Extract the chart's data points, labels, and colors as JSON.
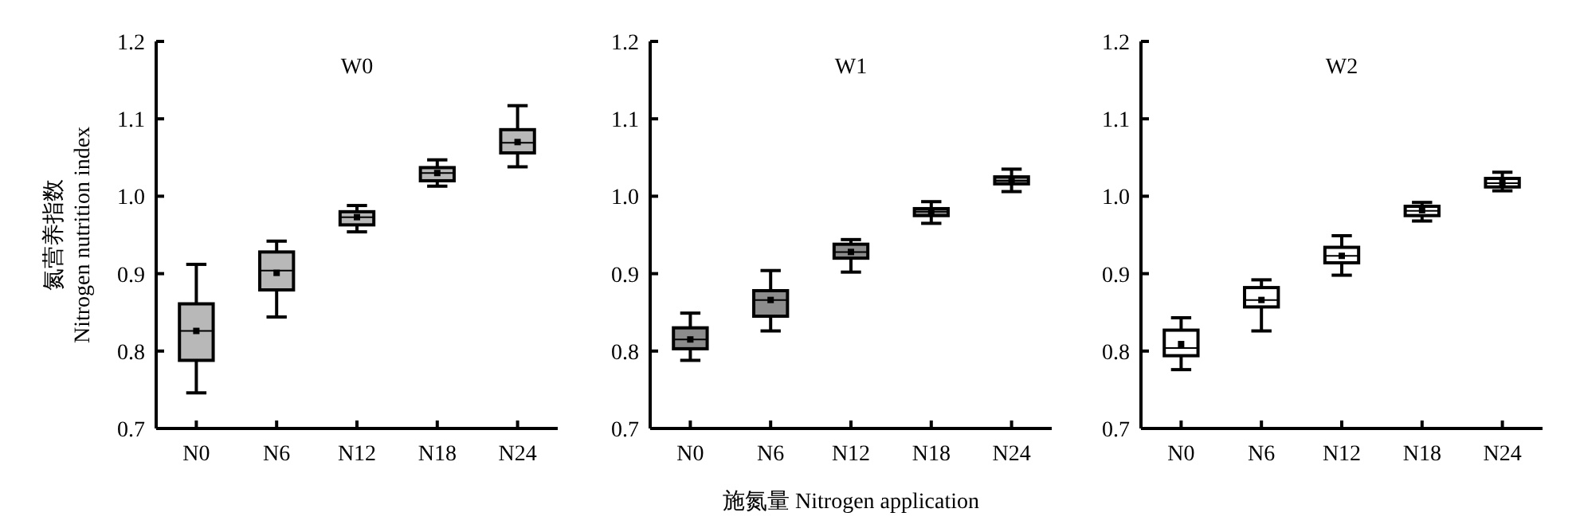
{
  "chart_data": [
    {
      "type": "box",
      "title": "W0",
      "ylabel": "氮营养指数\nNitrogen nutrition index",
      "categories": [
        "N0",
        "N6",
        "N12",
        "N18",
        "N24"
      ],
      "ylim": [
        0.7,
        1.2
      ],
      "yticks": [
        {
          "value": 0.7,
          "label": "0.7"
        },
        {
          "value": 0.8,
          "label": "0.8"
        },
        {
          "value": 0.9,
          "label": "0.9"
        },
        {
          "value": 1.0,
          "label": "1.0"
        },
        {
          "value": 1.1,
          "label": "1.1"
        },
        {
          "value": 1.2,
          "label": "1.2"
        }
      ],
      "series": [
        {
          "color": "#b8b8b8",
          "boxes": [
            {
              "low": 0.746,
              "q1": 0.788,
              "median": 0.826,
              "q3": 0.861,
              "high": 0.912,
              "mean": 0.826
            },
            {
              "low": 0.844,
              "q1": 0.879,
              "median": 0.904,
              "q3": 0.928,
              "high": 0.942,
              "mean": 0.901
            },
            {
              "low": 0.954,
              "q1": 0.963,
              "median": 0.973,
              "q3": 0.98,
              "high": 0.988,
              "mean": 0.973
            },
            {
              "low": 1.013,
              "q1": 1.02,
              "median": 1.03,
              "q3": 1.037,
              "high": 1.047,
              "mean": 1.03
            },
            {
              "low": 1.038,
              "q1": 1.056,
              "median": 1.069,
              "q3": 1.086,
              "high": 1.117,
              "mean": 1.07
            }
          ]
        }
      ]
    },
    {
      "type": "box",
      "title": "W1",
      "xlabel": "施氮量 Nitrogen application",
      "categories": [
        "N0",
        "N6",
        "N12",
        "N18",
        "N24"
      ],
      "ylim": [
        0.7,
        1.2
      ],
      "yticks": [
        {
          "value": 0.7,
          "label": "0.7"
        },
        {
          "value": 0.8,
          "label": "0.8"
        },
        {
          "value": 0.9,
          "label": "0.9"
        },
        {
          "value": 1.0,
          "label": "1.0"
        },
        {
          "value": 1.1,
          "label": "1.1"
        },
        {
          "value": 1.2,
          "label": "1.2"
        }
      ],
      "series": [
        {
          "color": "#8c8c8c",
          "boxes": [
            {
              "low": 0.788,
              "q1": 0.803,
              "median": 0.815,
              "q3": 0.83,
              "high": 0.849,
              "mean": 0.815
            },
            {
              "low": 0.826,
              "q1": 0.845,
              "median": 0.866,
              "q3": 0.878,
              "high": 0.904,
              "mean": 0.866
            },
            {
              "low": 0.902,
              "q1": 0.92,
              "median": 0.928,
              "q3": 0.938,
              "high": 0.944,
              "mean": 0.928
            },
            {
              "low": 0.965,
              "q1": 0.975,
              "median": 0.98,
              "q3": 0.984,
              "high": 0.993,
              "mean": 0.98
            },
            {
              "low": 1.006,
              "q1": 1.016,
              "median": 1.02,
              "q3": 1.025,
              "high": 1.035,
              "mean": 1.02
            }
          ]
        }
      ]
    },
    {
      "type": "box",
      "title": "W2",
      "categories": [
        "N0",
        "N6",
        "N12",
        "N18",
        "N24"
      ],
      "ylim": [
        0.7,
        1.2
      ],
      "yticks": [
        {
          "value": 0.7,
          "label": "0.7"
        },
        {
          "value": 0.8,
          "label": "0.8"
        },
        {
          "value": 0.9,
          "label": "0.9"
        },
        {
          "value": 1.0,
          "label": "1.0"
        },
        {
          "value": 1.1,
          "label": "1.1"
        },
        {
          "value": 1.2,
          "label": "1.2"
        }
      ],
      "series": [
        {
          "color": "#ffffff",
          "boxes": [
            {
              "low": 0.776,
              "q1": 0.794,
              "median": 0.804,
              "q3": 0.827,
              "high": 0.843,
              "mean": 0.809
            },
            {
              "low": 0.826,
              "q1": 0.857,
              "median": 0.866,
              "q3": 0.882,
              "high": 0.892,
              "mean": 0.866
            },
            {
              "low": 0.898,
              "q1": 0.914,
              "median": 0.923,
              "q3": 0.934,
              "high": 0.949,
              "mean": 0.923
            },
            {
              "low": 0.968,
              "q1": 0.975,
              "median": 0.981,
              "q3": 0.987,
              "high": 0.992,
              "mean": 0.982
            },
            {
              "low": 1.007,
              "q1": 1.012,
              "median": 1.017,
              "q3": 1.023,
              "high": 1.031,
              "mean": 1.017
            }
          ]
        }
      ]
    }
  ]
}
